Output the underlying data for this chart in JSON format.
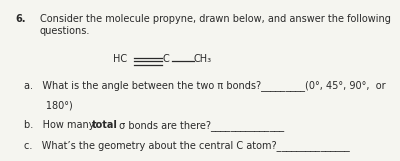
{
  "title_number": "6.",
  "title_text": "Consider the molecule propyne, drawn below, and answer the following\nquestions.",
  "bg_color": "#f5f5f0",
  "text_color": "#2a2a2a",
  "font_size": 7.0,
  "mol_hc": "HC",
  "mol_c": "C",
  "mol_ch3": "CH₃",
  "qa_line1": "a.   What is the angle between the two π bonds?_________(0°, 45°, 90°,  or",
  "qa_line2": "       180°)",
  "qb_pre": "b.   How many ",
  "qb_bold": "total",
  "qb_post": " σ bonds are there?_______________",
  "qc": "c.   What’s the geometry about the central C atom?_______________"
}
